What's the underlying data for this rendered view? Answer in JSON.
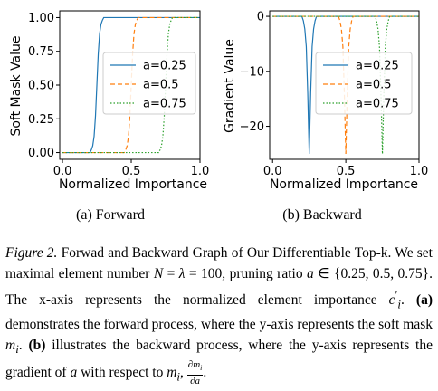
{
  "chart_data": [
    {
      "type": "line",
      "subcaption": "(a) Forward",
      "xlabel": "Normalized Importance",
      "ylabel": "Soft Mask Value",
      "xlim": [
        -0.02,
        1.0
      ],
      "ylim": [
        -0.05,
        1.05
      ],
      "xticks": [
        "0.0",
        "0.5",
        "1.0"
      ],
      "yticks": [
        "0.00",
        "0.25",
        "0.50",
        "0.75",
        "1.00"
      ],
      "legend_position": "center-right",
      "series": [
        {
          "name": "a=0.25",
          "color": "#1f77b4",
          "style": "solid",
          "x": [
            0.0,
            0.2,
            0.21,
            0.22,
            0.23,
            0.24,
            0.25,
            0.26,
            0.27,
            0.28,
            0.29,
            0.3,
            1.0
          ],
          "y": [
            0.0,
            0.0,
            0.02,
            0.05,
            0.12,
            0.27,
            0.5,
            0.73,
            0.88,
            0.95,
            0.98,
            1.0,
            1.0
          ]
        },
        {
          "name": "a=0.5",
          "color": "#ff7f0e",
          "style": "dashed",
          "x": [
            0.0,
            0.45,
            0.46,
            0.47,
            0.48,
            0.49,
            0.5,
            0.51,
            0.52,
            0.53,
            0.54,
            0.55,
            1.0
          ],
          "y": [
            0.0,
            0.0,
            0.02,
            0.05,
            0.12,
            0.27,
            0.5,
            0.73,
            0.88,
            0.95,
            0.98,
            1.0,
            1.0
          ]
        },
        {
          "name": "a=0.75",
          "color": "#2ca02c",
          "style": "dotted",
          "x": [
            0.0,
            0.7,
            0.71,
            0.72,
            0.73,
            0.74,
            0.75,
            0.76,
            0.77,
            0.78,
            0.79,
            0.8,
            1.0
          ],
          "y": [
            0.0,
            0.0,
            0.02,
            0.05,
            0.12,
            0.27,
            0.5,
            0.73,
            0.88,
            0.95,
            0.98,
            1.0,
            1.0
          ]
        }
      ]
    },
    {
      "type": "line",
      "subcaption": "(b) Backward",
      "xlabel": "Normalized Importance",
      "ylabel": "Gradient Value",
      "xlim": [
        -0.02,
        1.0
      ],
      "ylim": [
        -26,
        1
      ],
      "xticks": [
        "0.0",
        "0.5",
        "1.0"
      ],
      "yticks": [
        "0",
        "−10",
        "−20"
      ],
      "legend_position": "center-right",
      "series": [
        {
          "name": "a=0.25",
          "color": "#1f77b4",
          "style": "solid",
          "x": [
            0.0,
            0.2,
            0.21,
            0.22,
            0.23,
            0.24,
            0.25,
            0.26,
            0.27,
            0.28,
            0.29,
            0.3,
            1.0
          ],
          "y": [
            0.0,
            0.0,
            -0.8,
            -2.3,
            -5.5,
            -14.0,
            -25.0,
            -14.0,
            -5.5,
            -2.3,
            -0.8,
            0.0,
            0.0
          ]
        },
        {
          "name": "a=0.5",
          "color": "#ff7f0e",
          "style": "dashed",
          "x": [
            0.0,
            0.45,
            0.46,
            0.47,
            0.48,
            0.49,
            0.5,
            0.51,
            0.52,
            0.53,
            0.54,
            0.55,
            1.0
          ],
          "y": [
            0.0,
            0.0,
            -0.8,
            -2.3,
            -5.5,
            -14.0,
            -25.0,
            -14.0,
            -5.5,
            -2.3,
            -0.8,
            0.0,
            0.0
          ]
        },
        {
          "name": "a=0.75",
          "color": "#2ca02c",
          "style": "dotted",
          "x": [
            0.0,
            0.7,
            0.71,
            0.72,
            0.73,
            0.74,
            0.75,
            0.76,
            0.77,
            0.78,
            0.79,
            0.8,
            1.0
          ],
          "y": [
            0.0,
            0.0,
            -0.8,
            -2.3,
            -5.5,
            -14.0,
            -25.0,
            -14.0,
            -5.5,
            -2.3,
            -0.8,
            0.0,
            0.0
          ]
        }
      ]
    }
  ],
  "caption": {
    "label": "Figure 2.",
    "text_1": " Forwad and Backward Graph of Our Differentiable Top-k.  We set maximal element number ",
    "text_2": " = ",
    "text_3": " = 100, pruning ratio ",
    "text_4": " ∈ {0.25, 0.5, 0.75}. The x-axis represents the normalized element importance ",
    "text_5": ". ",
    "bold_a": "(a)",
    "text_6": " demonstrates the forward process, where the y-axis represents the soft mask ",
    "text_7": ". ",
    "bold_b": "(b)",
    "text_8": " illustrates the backward process, where the y-axis represents the gradient of ",
    "text_9": " with respect to ",
    "text_10": ", ",
    "text_11": ".",
    "sym_N": "N",
    "sym_lambda": "λ",
    "sym_a": "a",
    "sym_c": "c",
    "sym_c_sup": "′",
    "sym_c_sub": "i",
    "sym_m": "m",
    "sym_m_sub": "i",
    "frac_num": "∂m",
    "frac_num_sub": "i",
    "frac_den": "∂a"
  }
}
